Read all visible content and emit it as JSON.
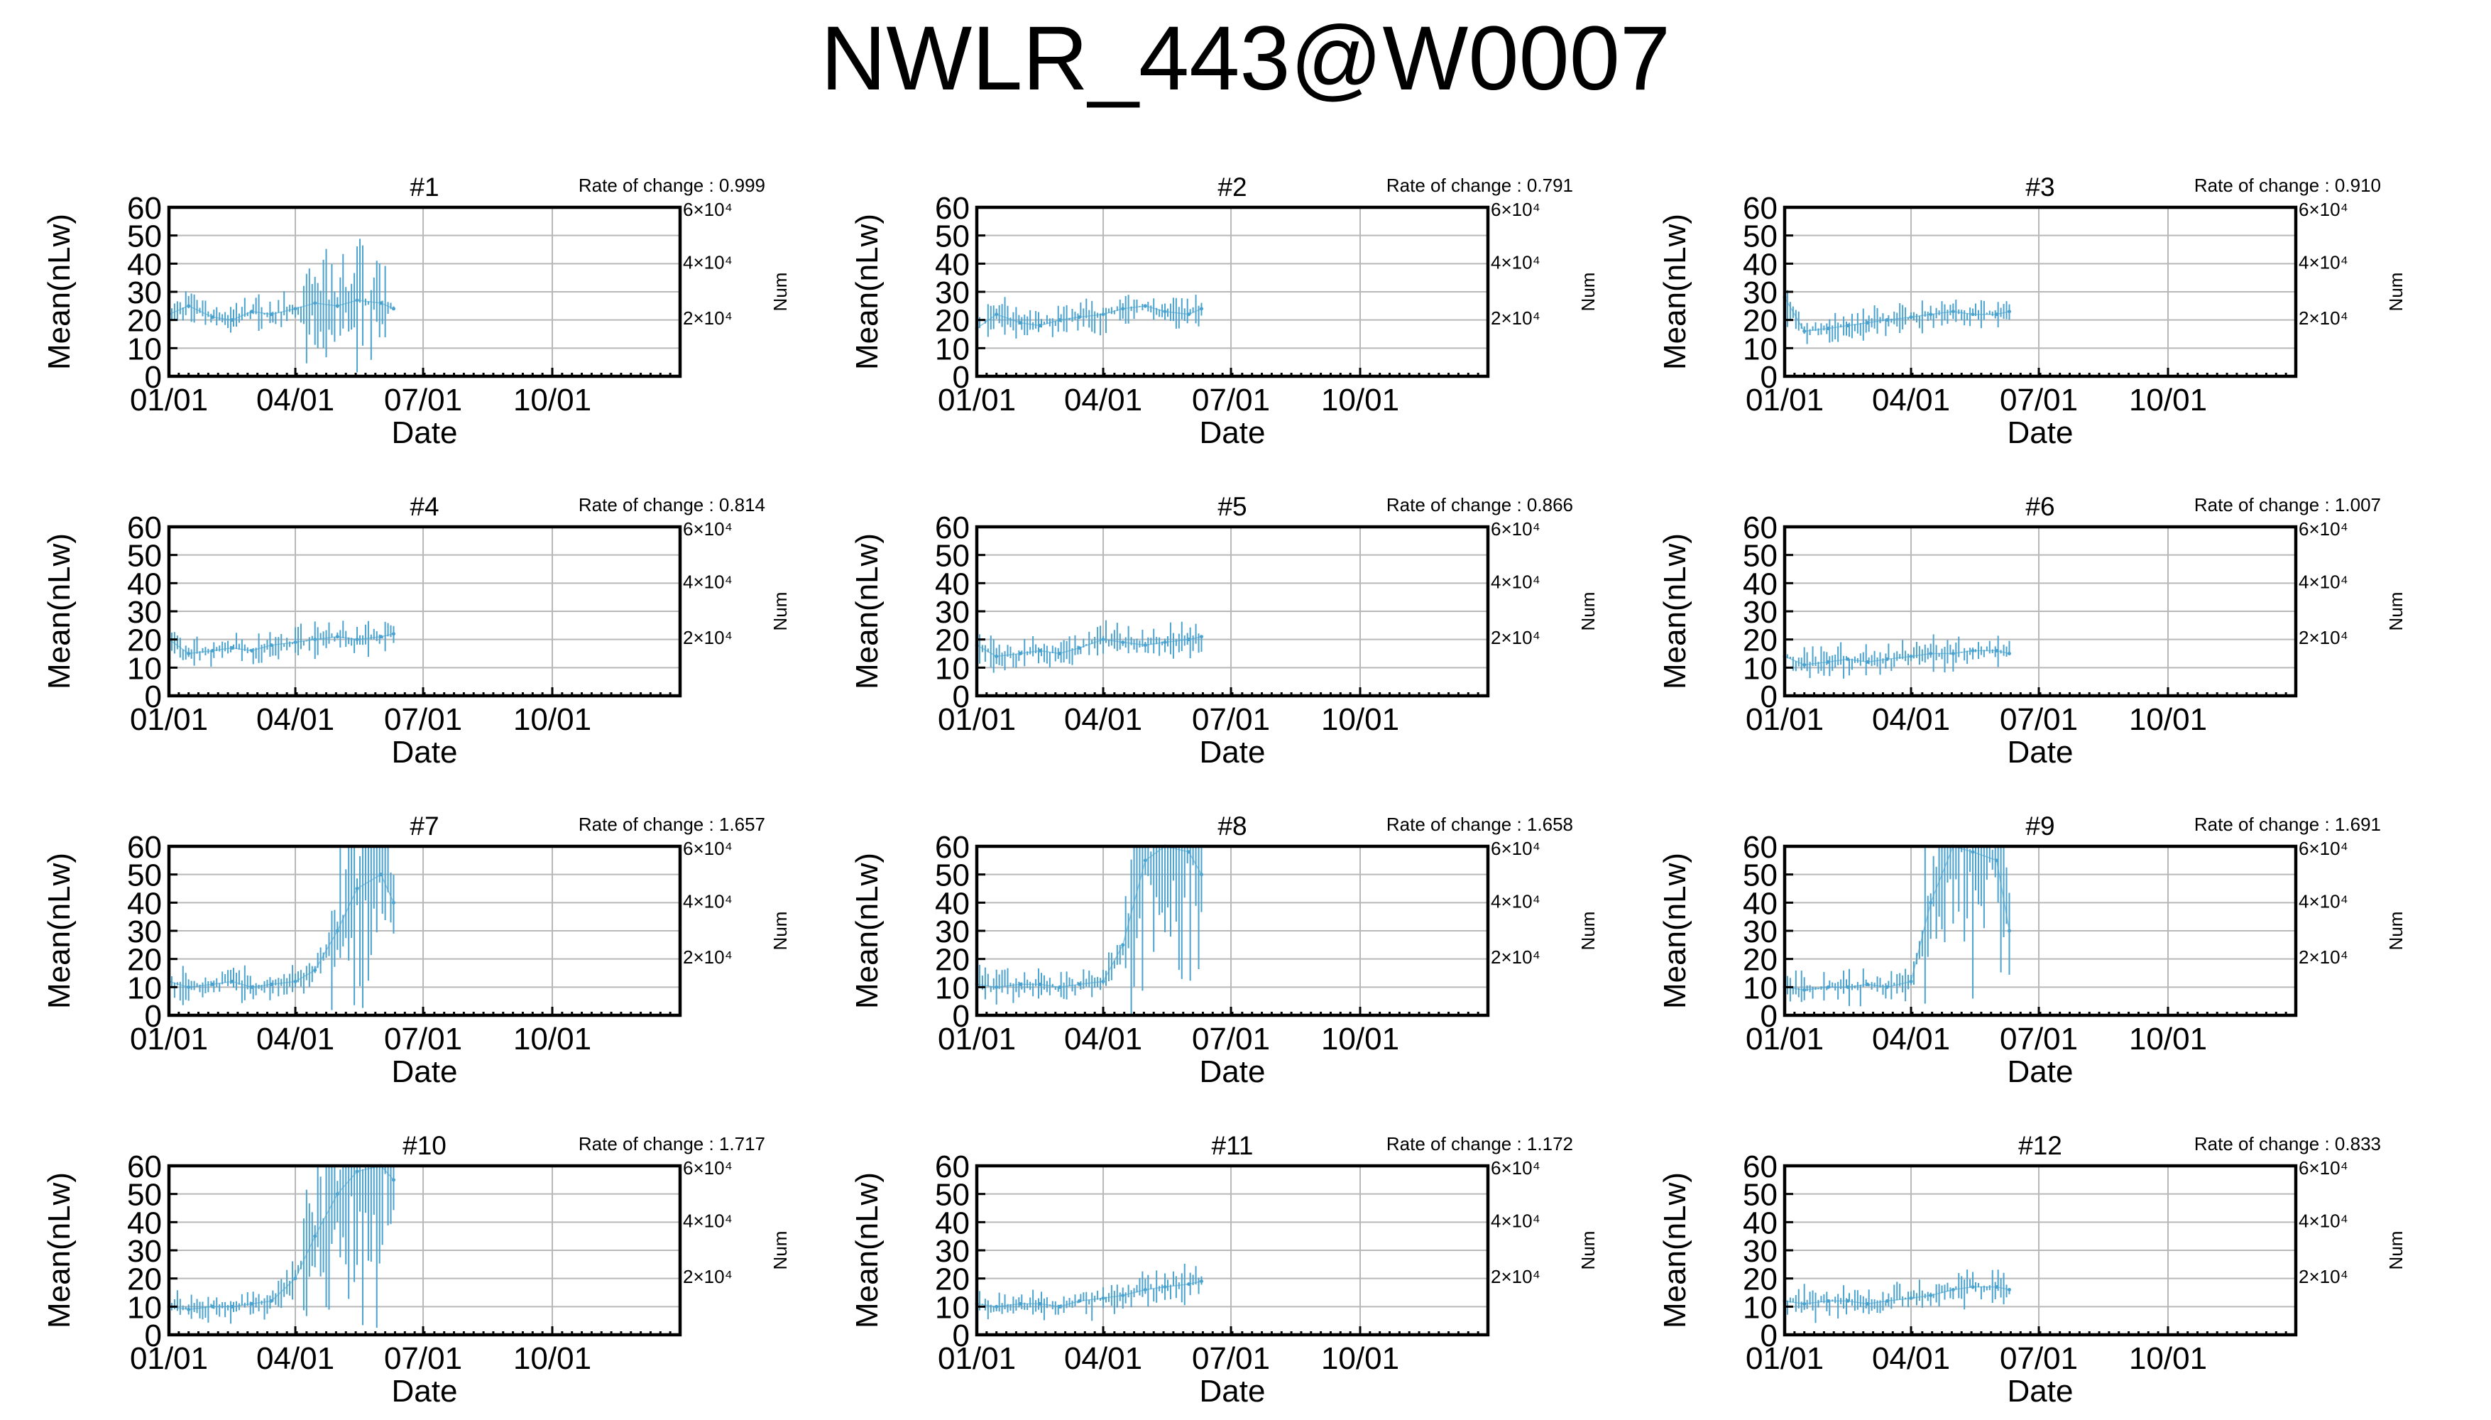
{
  "title": "NWLR_443@W0007",
  "series_color": "#4aa3cf",
  "chart_data": {
    "type": "line",
    "x_type": "date",
    "xlabel": "Date",
    "ylabel": "Mean(nLw)",
    "y2label": "Num",
    "ylim": [
      0,
      60
    ],
    "yticks": [
      0,
      10,
      20,
      30,
      40,
      50,
      60
    ],
    "xticks": [
      "01/01",
      "04/01",
      "07/01",
      "10/01"
    ],
    "xlim": [
      "01/01",
      "12/31"
    ],
    "y2ticks": [
      "2×10⁴",
      "4×10⁴",
      "6×10⁴"
    ],
    "grid": true,
    "rate_prefix": "Rate of change : ",
    "panels": [
      {
        "title": "#1",
        "rate": "0.999",
        "x": [
          "01/01",
          "01/15",
          "02/01",
          "02/15",
          "03/01",
          "03/15",
          "04/01",
          "04/15",
          "05/01",
          "05/15",
          "06/01",
          "06/10"
        ],
        "y": [
          22,
          25,
          21,
          20,
          23,
          22,
          24,
          26,
          25,
          27,
          26,
          24
        ]
      },
      {
        "title": "#2",
        "rate": "0.791",
        "x": [
          "01/01",
          "01/15",
          "02/01",
          "02/15",
          "03/01",
          "03/15",
          "04/01",
          "04/15",
          "05/01",
          "05/15",
          "06/01",
          "06/10"
        ],
        "y": [
          17,
          22,
          19,
          18,
          20,
          21,
          22,
          24,
          25,
          23,
          22,
          24
        ]
      },
      {
        "title": "#3",
        "rate": "0.910",
        "x": [
          "01/01",
          "01/15",
          "02/01",
          "02/15",
          "03/01",
          "03/15",
          "04/01",
          "04/15",
          "05/01",
          "05/15",
          "06/01",
          "06/10"
        ],
        "y": [
          28,
          16,
          17,
          18,
          19,
          20,
          21,
          22,
          23,
          22,
          22,
          23
        ]
      },
      {
        "title": "#4",
        "rate": "0.814",
        "x": [
          "01/01",
          "01/15",
          "02/01",
          "02/15",
          "03/01",
          "03/15",
          "04/01",
          "04/15",
          "05/01",
          "05/15",
          "06/01",
          "06/10"
        ],
        "y": [
          20,
          15,
          16,
          17,
          16,
          18,
          19,
          20,
          21,
          20,
          21,
          22
        ]
      },
      {
        "title": "#5",
        "rate": "0.866",
        "x": [
          "01/01",
          "01/15",
          "02/01",
          "02/15",
          "03/01",
          "03/15",
          "04/01",
          "04/15",
          "05/01",
          "05/15",
          "06/01",
          "06/10"
        ],
        "y": [
          18,
          14,
          15,
          16,
          15,
          17,
          20,
          19,
          18,
          19,
          20,
          21
        ]
      },
      {
        "title": "#6",
        "rate": "1.007",
        "x": [
          "01/01",
          "01/15",
          "02/01",
          "02/15",
          "03/01",
          "03/15",
          "04/01",
          "04/15",
          "05/01",
          "05/15",
          "06/01",
          "06/10"
        ],
        "y": [
          14,
          11,
          12,
          13,
          12,
          13,
          14,
          15,
          15,
          16,
          16,
          15
        ]
      },
      {
        "title": "#7",
        "rate": "1.657",
        "x": [
          "01/01",
          "01/15",
          "02/01",
          "02/15",
          "03/01",
          "03/15",
          "04/01",
          "04/15",
          "05/01",
          "05/15",
          "06/01",
          "06/10"
        ],
        "y": [
          12,
          10,
          11,
          12,
          10,
          11,
          12,
          16,
          30,
          45,
          50,
          40
        ]
      },
      {
        "title": "#8",
        "rate": "1.658",
        "x": [
          "01/01",
          "01/15",
          "02/01",
          "02/15",
          "03/01",
          "03/15",
          "04/01",
          "04/15",
          "05/01",
          "05/15",
          "06/01",
          "06/10"
        ],
        "y": [
          11,
          10,
          11,
          11,
          10,
          11,
          12,
          25,
          55,
          60,
          58,
          50
        ]
      },
      {
        "title": "#9",
        "rate": "1.691",
        "x": [
          "01/01",
          "01/15",
          "02/01",
          "02/15",
          "03/01",
          "03/15",
          "04/01",
          "04/15",
          "05/01",
          "05/15",
          "06/01",
          "06/10"
        ],
        "y": [
          10,
          9,
          10,
          10,
          11,
          10,
          12,
          40,
          60,
          58,
          55,
          30
        ]
      },
      {
        "title": "#10",
        "rate": "1.717",
        "x": [
          "01/01",
          "01/15",
          "02/01",
          "02/15",
          "03/01",
          "03/15",
          "04/01",
          "04/15",
          "05/01",
          "05/15",
          "06/01",
          "06/10"
        ],
        "y": [
          10,
          9,
          10,
          10,
          11,
          12,
          20,
          35,
          50,
          58,
          60,
          55
        ]
      },
      {
        "title": "#11",
        "rate": "1.172",
        "x": [
          "01/01",
          "01/15",
          "02/01",
          "02/15",
          "03/01",
          "03/15",
          "04/01",
          "04/15",
          "05/01",
          "05/15",
          "06/01",
          "06/10"
        ],
        "y": [
          11,
          10,
          11,
          11,
          10,
          12,
          13,
          14,
          16,
          17,
          18,
          19
        ]
      },
      {
        "title": "#12",
        "rate": "0.833",
        "x": [
          "01/01",
          "01/15",
          "02/01",
          "02/15",
          "03/01",
          "03/15",
          "04/01",
          "04/15",
          "05/01",
          "05/15",
          "06/01",
          "06/10"
        ],
        "y": [
          12,
          11,
          12,
          12,
          11,
          12,
          13,
          14,
          16,
          17,
          17,
          16
        ]
      }
    ]
  }
}
